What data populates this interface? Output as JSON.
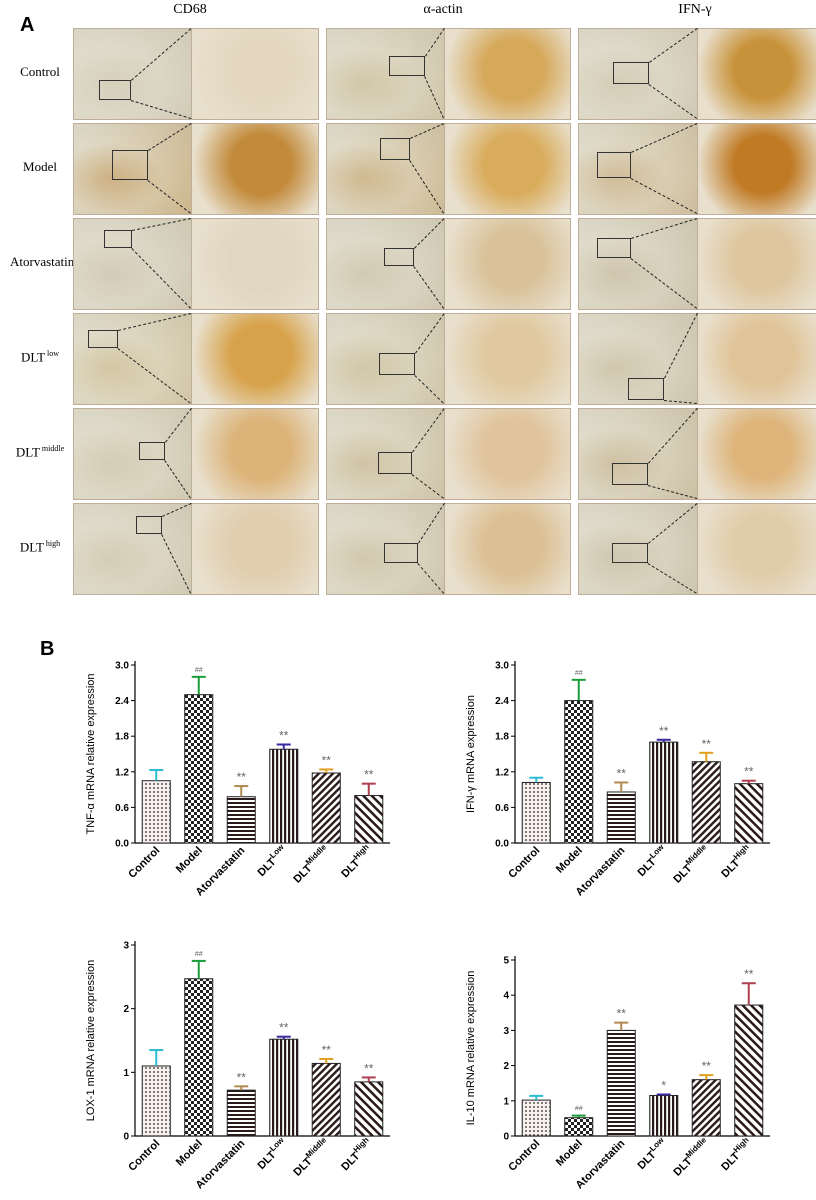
{
  "panel_a": {
    "letter": "A",
    "columns": [
      "CD68",
      "α-actin",
      "IFN-γ"
    ],
    "rows": [
      {
        "label": "Control",
        "sup": ""
      },
      {
        "label": "Model",
        "sup": ""
      },
      {
        "label": "Atorvastatin",
        "sup": ""
      },
      {
        "label": "DLT",
        "sup": "low"
      },
      {
        "label": "DLT",
        "sup": "middle"
      },
      {
        "label": "DLT",
        "sup": "high"
      }
    ]
  },
  "panel_b": {
    "letter": "B"
  },
  "chart_data": [
    {
      "type": "bar",
      "ylabel": "TNF-α mRNA relative expression",
      "categories": [
        "Control",
        "Model",
        "Atorvastatin",
        "DLT^Low",
        "DLT^Middle",
        "DLT^High"
      ],
      "values": [
        1.05,
        2.5,
        0.78,
        1.58,
        1.18,
        0.8
      ],
      "errors": [
        0.18,
        0.3,
        0.18,
        0.08,
        0.06,
        0.2
      ],
      "annotations": [
        "",
        "##",
        "**",
        "**",
        "**",
        "**"
      ],
      "yticks": [
        "0.0",
        "0.6",
        "1.2",
        "1.8",
        "2.4",
        "3.0"
      ],
      "ylim": [
        0,
        3.0
      ]
    },
    {
      "type": "bar",
      "ylabel": "IFN-γ mRNA expression",
      "categories": [
        "Control",
        "Model",
        "Atorvastatin",
        "DLT^Low",
        "DLT^Middle",
        "DLT^High"
      ],
      "values": [
        1.02,
        2.4,
        0.86,
        1.7,
        1.37,
        1.0
      ],
      "errors": [
        0.08,
        0.35,
        0.16,
        0.04,
        0.15,
        0.05
      ],
      "annotations": [
        "",
        "##",
        "**",
        "**",
        "**",
        "**"
      ],
      "yticks": [
        "0.0",
        "0.6",
        "1.2",
        "1.8",
        "2.4",
        "3.0"
      ],
      "ylim": [
        0,
        3.0
      ]
    },
    {
      "type": "bar",
      "ylabel": "LOX-1 mRNA relative expression",
      "categories": [
        "Control",
        "Model",
        "Atorvastatin",
        "DLT^Low",
        "DLT^Middle",
        "DLT^High"
      ],
      "values": [
        1.1,
        2.47,
        0.72,
        1.52,
        1.14,
        0.85
      ],
      "errors": [
        0.25,
        0.28,
        0.06,
        0.04,
        0.07,
        0.07
      ],
      "annotations": [
        "",
        "##",
        "**",
        "**",
        "**",
        "**"
      ],
      "yticks": [
        "0",
        "1",
        "2",
        "3"
      ],
      "ylim": [
        0,
        3
      ]
    },
    {
      "type": "bar",
      "ylabel": "IL-10 mRNA relative expression",
      "categories": [
        "Control",
        "Model",
        "Atorvastatin",
        "DLT^Low",
        "DLT^Middle",
        "DLT^High"
      ],
      "values": [
        1.02,
        0.52,
        3.0,
        1.15,
        1.6,
        3.72
      ],
      "errors": [
        0.12,
        0.06,
        0.22,
        0.03,
        0.13,
        0.62
      ],
      "annotations": [
        "",
        "##",
        "**",
        "*",
        "**",
        "**"
      ],
      "yticks": [
        "0",
        "1",
        "2",
        "3",
        "4",
        "5"
      ],
      "ylim": [
        0,
        5
      ]
    }
  ],
  "series_colors": [
    "#2bbcd1",
    "#1a9e3a",
    "#b08a50",
    "#3a2aa0",
    "#e0a020",
    "#b04050"
  ],
  "annotation_color": "#666666"
}
